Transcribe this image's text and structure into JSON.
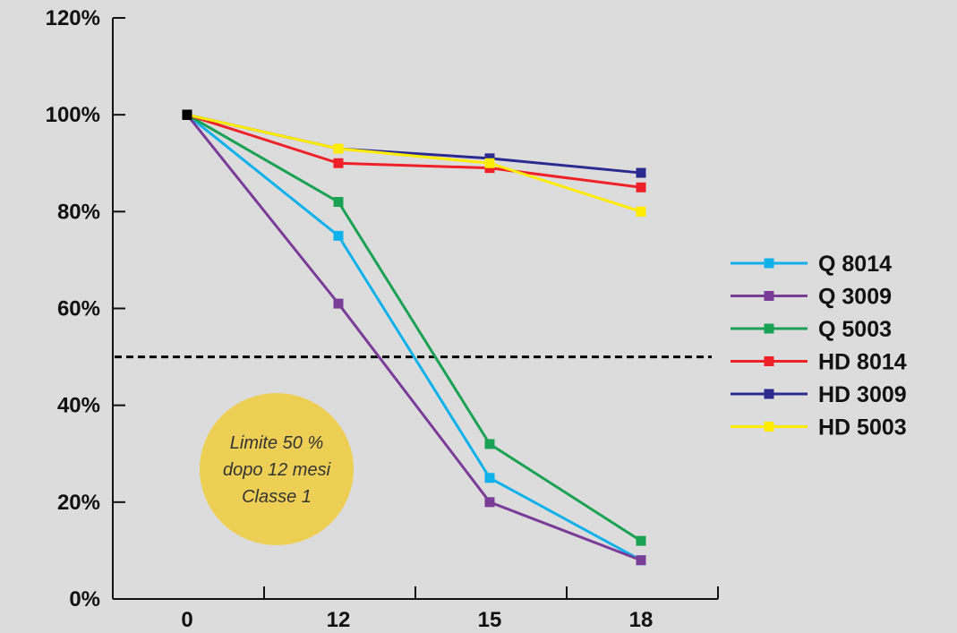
{
  "chart_data": {
    "type": "line",
    "x": [
      "0",
      "12",
      "15",
      "18"
    ],
    "ylim": [
      0,
      120
    ],
    "yticks": [
      "0%",
      "20%",
      "40%",
      "60%",
      "80%",
      "100%",
      "120%"
    ],
    "ytick_values": [
      0,
      20,
      40,
      60,
      80,
      100,
      120
    ],
    "reference_line": {
      "value": 50,
      "style": "dashed",
      "color": "#000000"
    },
    "annotation": {
      "lines": [
        "Limite 50 %",
        "dopo 12 mesi",
        "Classe 1"
      ],
      "color": "#eecf55"
    },
    "legend_position": "right",
    "start_marker_color": "#000000",
    "series": [
      {
        "name": "Q 8014",
        "color": "#10b1ea",
        "values": [
          100,
          75,
          25,
          8
        ]
      },
      {
        "name": "Q 3009",
        "color": "#7a3d97",
        "values": [
          100,
          61,
          20,
          8
        ]
      },
      {
        "name": "Q 5003",
        "color": "#1aa153",
        "values": [
          100,
          82,
          32,
          12
        ]
      },
      {
        "name": "HD 8014",
        "color": "#ee2128",
        "values": [
          100,
          90,
          89,
          85
        ]
      },
      {
        "name": "HD 3009",
        "color": "#2b2b8f",
        "values": [
          100,
          93,
          91,
          88
        ]
      },
      {
        "name": "HD 5003",
        "color": "#ffec00",
        "values": [
          100,
          93,
          90,
          80
        ]
      }
    ]
  }
}
